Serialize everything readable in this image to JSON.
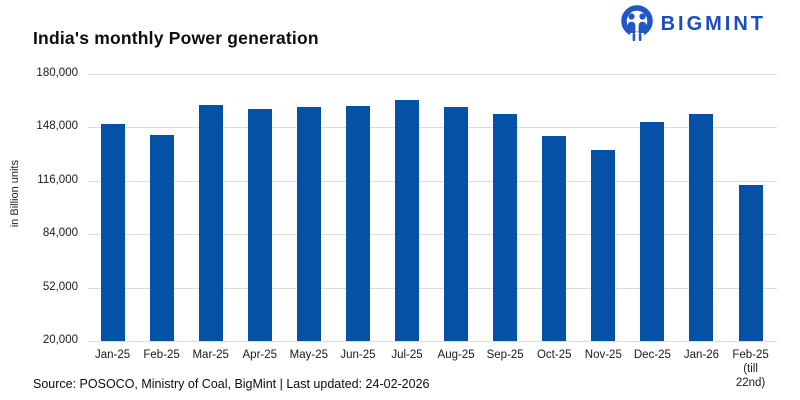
{
  "header": {
    "title": "India's monthly Power generation"
  },
  "logo": {
    "text": "BIGMINT",
    "icon": "people-in-circle-icon",
    "icon_color": "#2156c8",
    "text_color": "#1b4dc1"
  },
  "footer": {
    "source_text": "Source: POSOCO, Ministry of Coal, BigMint | Last updated: 24-02-2026"
  },
  "chart_data": {
    "type": "bar",
    "title": "India's monthly Power generation",
    "xlabel": "",
    "ylabel": "in Billion units",
    "ylim": [
      20000,
      180000
    ],
    "yticks": [
      180000,
      148000,
      116000,
      84000,
      52000,
      20000
    ],
    "ytick_labels": [
      "180,000",
      "148,000",
      "116,000",
      "84,000",
      "52,000",
      "20,000"
    ],
    "grid": "horizontal gridlines on, no axis lines",
    "legend": "none",
    "bar_color": "#0551a5",
    "categories": [
      "Jan-25",
      "Feb-25",
      "Mar-25",
      "Apr-25",
      "May-25",
      "Jun-25",
      "Jul-25",
      "Aug-25",
      "Sep-25",
      "Oct-25",
      "Nov-25",
      "Dec-25",
      "Jan-26",
      "Feb-25 (till 22nd)"
    ],
    "category_label_lines": [
      [
        "Jan-25"
      ],
      [
        "Feb-25"
      ],
      [
        "Mar-25"
      ],
      [
        "Apr-25"
      ],
      [
        "May-25"
      ],
      [
        "Jun-25"
      ],
      [
        "Jul-25"
      ],
      [
        "Aug-25"
      ],
      [
        "Sep-25"
      ],
      [
        "Oct-25"
      ],
      [
        "Nov-25"
      ],
      [
        "Dec-25"
      ],
      [
        "Jan-26"
      ],
      [
        "Feb-25",
        "(till",
        "22nd)"
      ]
    ],
    "values": [
      149800,
      143200,
      161500,
      159200,
      160500,
      161000,
      164500,
      160400,
      156200,
      142600,
      134300,
      151400,
      156200,
      113500
    ]
  }
}
